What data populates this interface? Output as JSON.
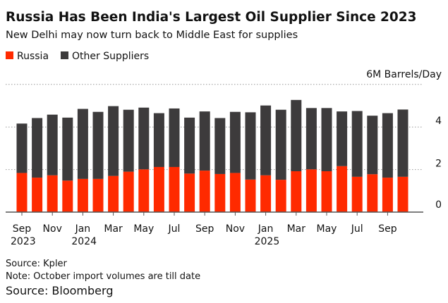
{
  "chart_data": {
    "type": "bar",
    "stacked": true,
    "title": "Russia Has Been India's Largest Oil Supplier Since 2023",
    "subtitle": "New Delhi may now turn back to Middle East for supplies",
    "ylabel": "Barrels/Day",
    "unit_label": "6M Barrels/Day",
    "ylim": [
      0,
      6
    ],
    "yticks": [
      "0",
      "2",
      "4"
    ],
    "grid": true,
    "legend_position": "top-left",
    "categories": [
      "Sep 2023",
      "Oct 2023",
      "Nov 2023",
      "Dec 2023",
      "Jan 2024",
      "Feb 2024",
      "Mar 2024",
      "Apr 2024",
      "May 2024",
      "Jun 2024",
      "Jul 2024",
      "Aug 2024",
      "Sep 2024",
      "Oct 2024",
      "Nov 2024",
      "Dec 2024",
      "Jan 2025",
      "Feb 2025",
      "Mar 2025",
      "Apr 2025",
      "May 2025",
      "Jun 2025",
      "Jul 2025",
      "Aug 2025",
      "Sep 2025",
      "Oct 2025"
    ],
    "xtick_labels": [
      {
        "month": "Sep",
        "year": "2023"
      },
      {
        "month": "Nov",
        "year": ""
      },
      {
        "month": "Jan",
        "year": "2024"
      },
      {
        "month": "Mar",
        "year": ""
      },
      {
        "month": "May",
        "year": ""
      },
      {
        "month": "Jul",
        "year": ""
      },
      {
        "month": "Sep",
        "year": ""
      },
      {
        "month": "Nov",
        "year": ""
      },
      {
        "month": "Jan",
        "year": "2025"
      },
      {
        "month": "Mar",
        "year": ""
      },
      {
        "month": "May",
        "year": ""
      },
      {
        "month": "Jul",
        "year": ""
      },
      {
        "month": "Sep",
        "year": ""
      }
    ],
    "series": [
      {
        "name": "Russia",
        "color": "#ff2a00",
        "values": [
          1.84,
          1.62,
          1.73,
          1.48,
          1.56,
          1.56,
          1.7,
          1.9,
          2.01,
          2.12,
          2.12,
          1.81,
          1.95,
          1.79,
          1.84,
          1.53,
          1.73,
          1.52,
          1.92,
          2.01,
          1.92,
          2.16,
          1.66,
          1.78,
          1.62,
          1.66
        ]
      },
      {
        "name": "Other Suppliers",
        "color": "#3d3b3c",
        "values": [
          2.32,
          2.8,
          2.85,
          2.96,
          3.29,
          3.15,
          3.28,
          2.91,
          2.9,
          2.53,
          2.75,
          2.63,
          2.78,
          2.63,
          2.87,
          3.16,
          3.28,
          3.29,
          3.35,
          2.88,
          2.97,
          2.57,
          3.09,
          2.75,
          3.03,
          3.16
        ]
      }
    ]
  },
  "footer": {
    "source": "Source: Kpler",
    "note": "Note: October import volumes are till date",
    "credit": "Source: Bloomberg"
  }
}
